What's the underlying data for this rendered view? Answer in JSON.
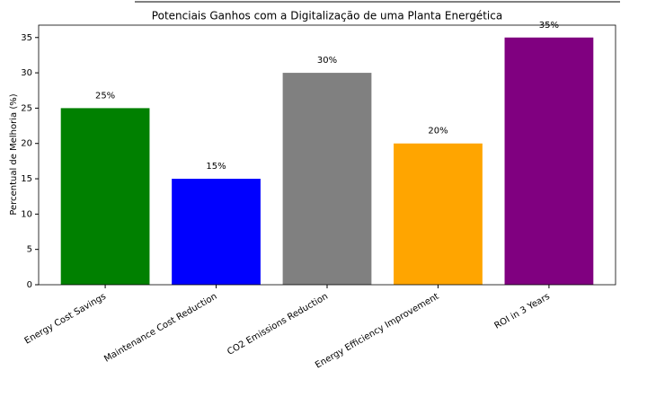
{
  "chart_data": {
    "type": "bar",
    "title": "Potenciais Ganhos com a Digitalização de uma Planta Energética",
    "ylabel": "Percentual de Melhoria (%)",
    "categories": [
      "Energy Cost Savings",
      "Maintenance Cost Reduction",
      "CO2 Emissions Reduction",
      "Energy Efficiency Improvement",
      "ROI in 3 Years"
    ],
    "values": [
      25,
      15,
      30,
      20,
      35
    ],
    "value_labels": [
      "25%",
      "15%",
      "30%",
      "20%",
      "35%"
    ],
    "colors": [
      "#008000",
      "#0000ff",
      "#808080",
      "#ffa500",
      "#800080"
    ],
    "ylim": [
      0,
      36.75
    ],
    "yticks": [
      0,
      5,
      10,
      15,
      20,
      25,
      30,
      35
    ],
    "grid": false
  }
}
